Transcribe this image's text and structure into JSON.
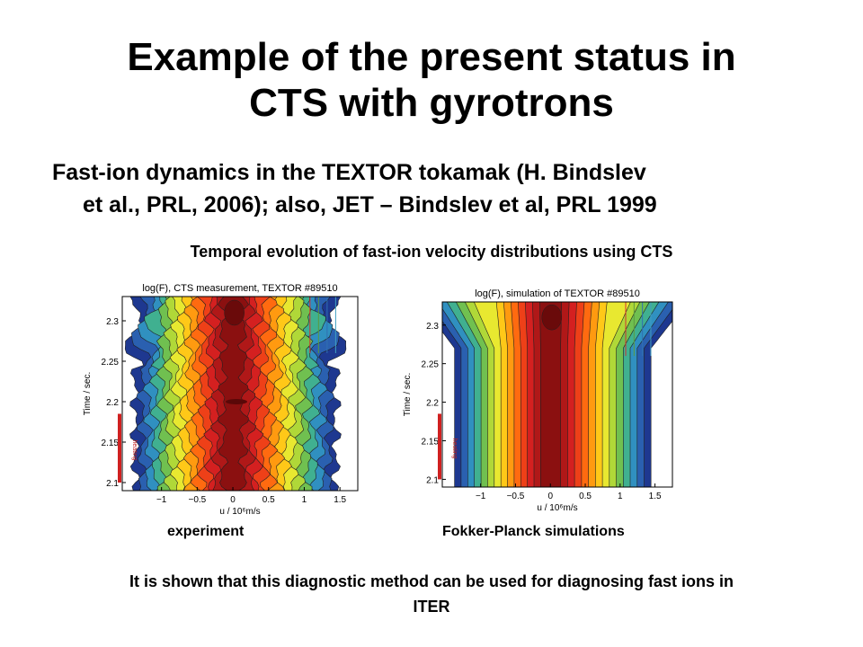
{
  "slide": {
    "title_line1": "Example of the present status in",
    "title_line2": "CTS with gyrotrons",
    "subtitle_line1": "Fast-ion dynamics in the TEXTOR tokamak (H. Bindslev",
    "subtitle_line2": "et al., PRL, 2006); also, JET – Bindslev et al, PRL 1999",
    "caption": "Temporal evolution of fast-ion velocity distributions using CTS",
    "label_experiment": "experiment",
    "label_simulation": "Fokker-Planck simulations",
    "conclusion_line1": "It is shown that this diagnostic method can be used for diagnosing fast ions in",
    "conclusion_line2": "ITER"
  },
  "chart_data": [
    {
      "type": "heatmap",
      "title": "log(F), CTS measurement, TEXTOR #89510",
      "xlabel": "u / 10⁶m/s",
      "ylabel": "Time / sec.",
      "x_ticks": [
        "−1",
        "−0.5",
        "0",
        "0.5",
        "1",
        "1.5"
      ],
      "y_ticks": [
        "2.1",
        "2.15",
        "2.2",
        "2.25",
        "2.3"
      ],
      "xlim": [
        -1.55,
        1.75
      ],
      "ylim": [
        2.09,
        2.33
      ],
      "side_marker": "heating",
      "colormap": [
        "#8b1010",
        "#b01818",
        "#d42020",
        "#ee4018",
        "#ff6a10",
        "#ff9a10",
        "#ffc818",
        "#e8e830",
        "#b0d838",
        "#70c050",
        "#40b090",
        "#3090c0",
        "#2a60b0",
        "#1e3890"
      ],
      "noisy": true
    },
    {
      "type": "heatmap",
      "title": "log(F), simulation of TEXTOR #89510",
      "xlabel": "u / 10⁶m/s",
      "ylabel": "Time / sec.",
      "x_ticks": [
        "−1",
        "−0.5",
        "0",
        "0.5",
        "1",
        "1.5"
      ],
      "y_ticks": [
        "2.1",
        "2.15",
        "2.2",
        "2.25",
        "2.3"
      ],
      "xlim": [
        -1.55,
        1.75
      ],
      "ylim": [
        2.09,
        2.33
      ],
      "side_marker": "heating",
      "colormap": [
        "#8b1010",
        "#b01818",
        "#d42020",
        "#ee4018",
        "#ff6a10",
        "#ff9a10",
        "#ffc818",
        "#e8e830",
        "#b0d838",
        "#70c050",
        "#40b090",
        "#3090c0",
        "#2a60b0",
        "#1e3890"
      ],
      "noisy": false
    }
  ]
}
